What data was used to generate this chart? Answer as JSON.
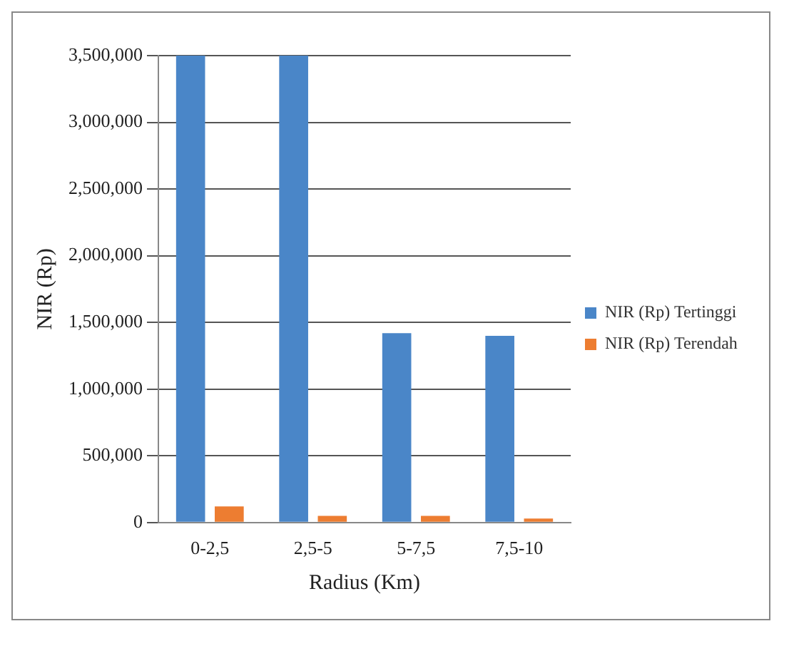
{
  "chart_data": {
    "type": "bar",
    "xlabel": "Radius (Km)",
    "ylabel": "NIR (Rp)",
    "categories": [
      "0-2,5",
      "2,5-5",
      "5-7,5",
      "7,5-10"
    ],
    "series": [
      {
        "name": "NIR (Rp) Tertinggi",
        "color": "#4a86c8",
        "values": [
          3500000,
          3500000,
          1420000,
          1400000
        ]
      },
      {
        "name": "NIR (Rp) Terendah",
        "color": "#ed7d31",
        "values": [
          120000,
          50000,
          50000,
          30000
        ]
      }
    ],
    "ylim": [
      0,
      3500000
    ],
    "yticks": [
      0,
      {
        "value": 500000,
        "label": "500,000"
      },
      {
        "value": 1000000,
        "label": "1,000,000"
      },
      {
        "value": 1500000,
        "label": "1,500,000"
      },
      {
        "value": 2000000,
        "label": "2,000,000"
      },
      {
        "value": 2500000,
        "label": "2,500,000"
      },
      {
        "value": 3000000,
        "label": "3,000,000"
      },
      {
        "value": 3500000,
        "label": "3,500,000"
      }
    ],
    "grid": "y",
    "legend": "right"
  }
}
